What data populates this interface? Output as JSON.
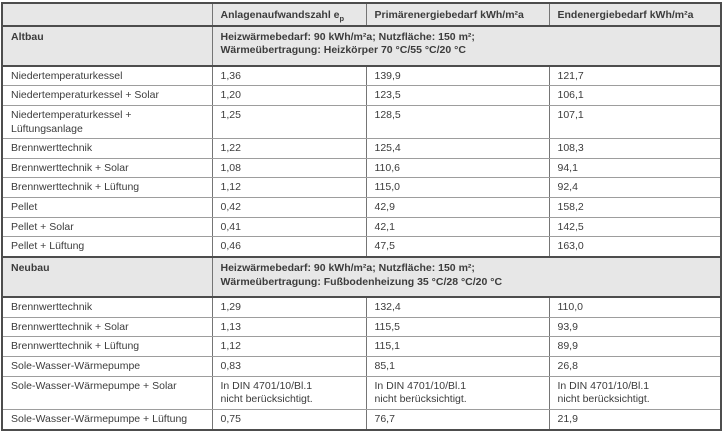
{
  "colors": {
    "section_background": "#e7e7e7",
    "frame_border": "#4d4d4d",
    "column_border": "#757575",
    "row_border": "#9d9d9d",
    "text": "#3c3c3c"
  },
  "table": {
    "header": {
      "col0": "",
      "col1_main": "Anlagenaufwandszahl e",
      "col1_sub": "p",
      "col2": "Primärenergiebedarf kWh/m²a",
      "col3": "Endenergiebedarf kWh/m²a"
    },
    "sections": [
      {
        "name": "Altbau",
        "description": "Heizwärmebedarf: 90 kWh/m²a; Nutzfläche: 150 m²;\nWärmeübertragung: Heizkörper 70 °C/55 °C/20 °C",
        "rows": [
          {
            "label": "Niedertemperaturkessel",
            "values": [
              "1,36",
              "139,9",
              "121,7"
            ]
          },
          {
            "label": "Niedertemperaturkessel + Solar",
            "values": [
              "1,20",
              "123,5",
              "106,1"
            ]
          },
          {
            "label": "Niedertemperaturkessel + Lüftungsanlage",
            "values": [
              "1,25",
              "128,5",
              "107,1"
            ]
          },
          {
            "label": "Brennwerttechnik",
            "values": [
              "1,22",
              "125,4",
              "108,3"
            ]
          },
          {
            "label": "Brennwerttechnik + Solar",
            "values": [
              "1,08",
              "110,6",
              "94,1"
            ]
          },
          {
            "label": "Brennwerttechnik + Lüftung",
            "values": [
              "1,12",
              "115,0",
              "92,4"
            ]
          },
          {
            "label": "Pellet",
            "values": [
              "0,42",
              "42,9",
              "158,2"
            ]
          },
          {
            "label": "Pellet + Solar",
            "values": [
              "0,41",
              "42,1",
              "142,5"
            ]
          },
          {
            "label": "Pellet + Lüftung",
            "values": [
              "0,46",
              "47,5",
              "163,0"
            ]
          }
        ]
      },
      {
        "name": "Neubau",
        "description": "Heizwärmebedarf: 90 kWh/m²a; Nutzfläche: 150 m²;\nWärmeübertragung: Fußbodenheizung 35 °C/28 °C/20 °C",
        "rows": [
          {
            "label": "Brennwerttechnik",
            "values": [
              "1,29",
              "132,4",
              "110,0"
            ]
          },
          {
            "label": "Brennwerttechnik + Solar",
            "values": [
              "1,13",
              "115,5",
              "93,9"
            ]
          },
          {
            "label": "Brennwerttechnik + Lüftung",
            "values": [
              "1,12",
              "115,1",
              "89,9"
            ]
          },
          {
            "label": "Sole-Wasser-Wärmepumpe",
            "values": [
              "0,83",
              "85,1",
              "26,8"
            ]
          },
          {
            "label": "Sole-Wasser-Wärmepumpe + Solar",
            "values": [
              "In DIN 4701/10/Bl.1\nnicht berücksichtigt.",
              "In DIN 4701/10/Bl.1\nnicht berücksichtigt.",
              "In DIN 4701/10/Bl.1\nnicht berücksichtigt."
            ]
          },
          {
            "label": "Sole-Wasser-Wärmepumpe + Lüftung",
            "values": [
              "0,75",
              "76,7",
              "21,9"
            ]
          }
        ]
      }
    ]
  }
}
